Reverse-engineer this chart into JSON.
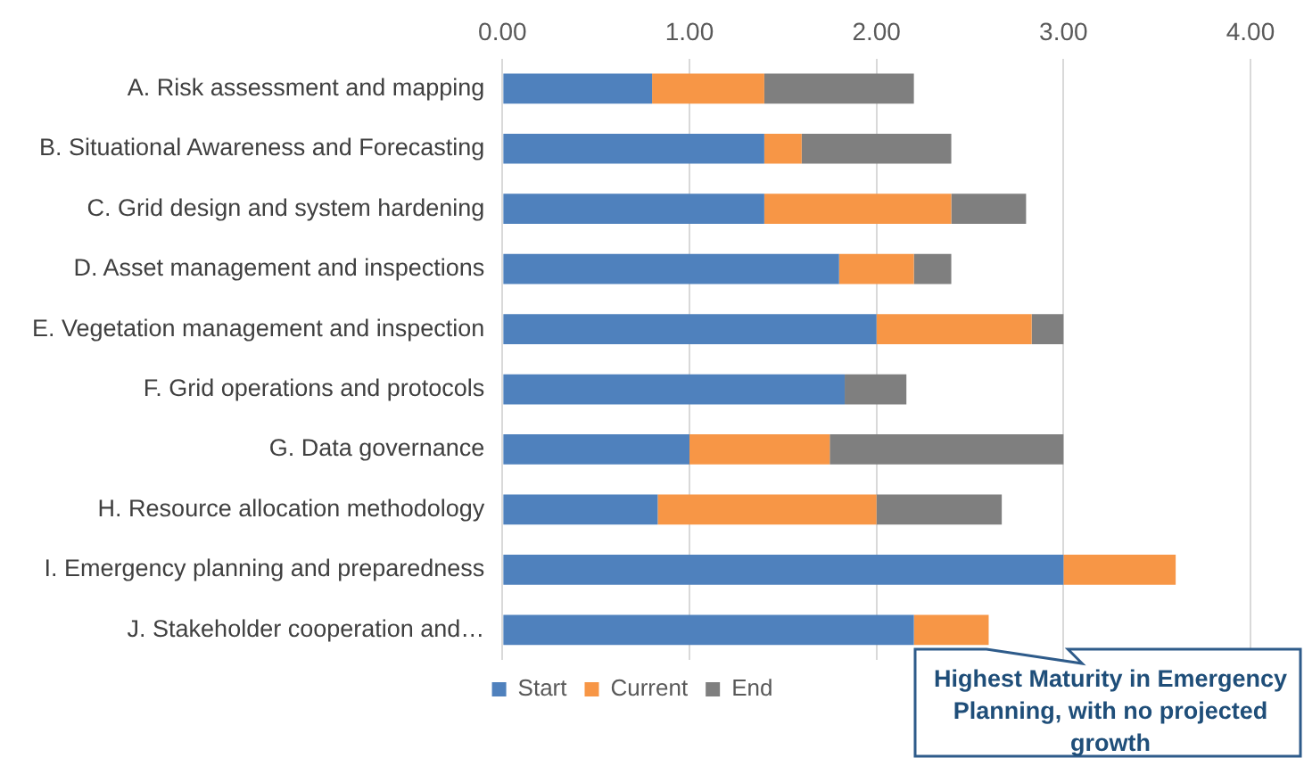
{
  "chart_data": {
    "type": "bar",
    "orientation": "horizontal",
    "stacked": true,
    "categories": [
      "A. Risk assessment and mapping",
      "B. Situational Awareness and Forecasting",
      "C. Grid design and system hardening",
      "D. Asset management and inspections",
      "E. Vegetation management and inspection",
      "F. Grid operations and protocols",
      "G. Data governance",
      "H. Resource allocation methodology",
      "I. Emergency planning and preparedness",
      "J. Stakeholder cooperation and…"
    ],
    "series": [
      {
        "name": "Start",
        "color": "#4f81bd",
        "values": [
          0.8,
          1.4,
          1.4,
          1.8,
          2.0,
          1.83,
          1.0,
          0.83,
          3.0,
          2.2
        ]
      },
      {
        "name": "Current",
        "color": "#f79646",
        "values": [
          0.6,
          0.2,
          1.0,
          0.4,
          0.83,
          0,
          0.75,
          1.17,
          0.6,
          0.4
        ]
      },
      {
        "name": "End",
        "color": "#7f7f7f",
        "values": [
          0.8,
          0.8,
          0.4,
          0.2,
          0.17,
          0.33,
          1.25,
          0.67,
          0,
          0
        ]
      }
    ],
    "xlim": [
      0,
      4
    ],
    "xticks": [
      {
        "value": 0,
        "label": "0.00"
      },
      {
        "value": 1,
        "label": "1.00"
      },
      {
        "value": 2,
        "label": "2.00"
      },
      {
        "value": 3,
        "label": "3.00"
      },
      {
        "value": 4,
        "label": "4.00"
      }
    ],
    "grid": "x",
    "legend": "bottom",
    "annotations": [
      "Highest Maturity in Emergency Planning,  with no projected growth"
    ]
  }
}
